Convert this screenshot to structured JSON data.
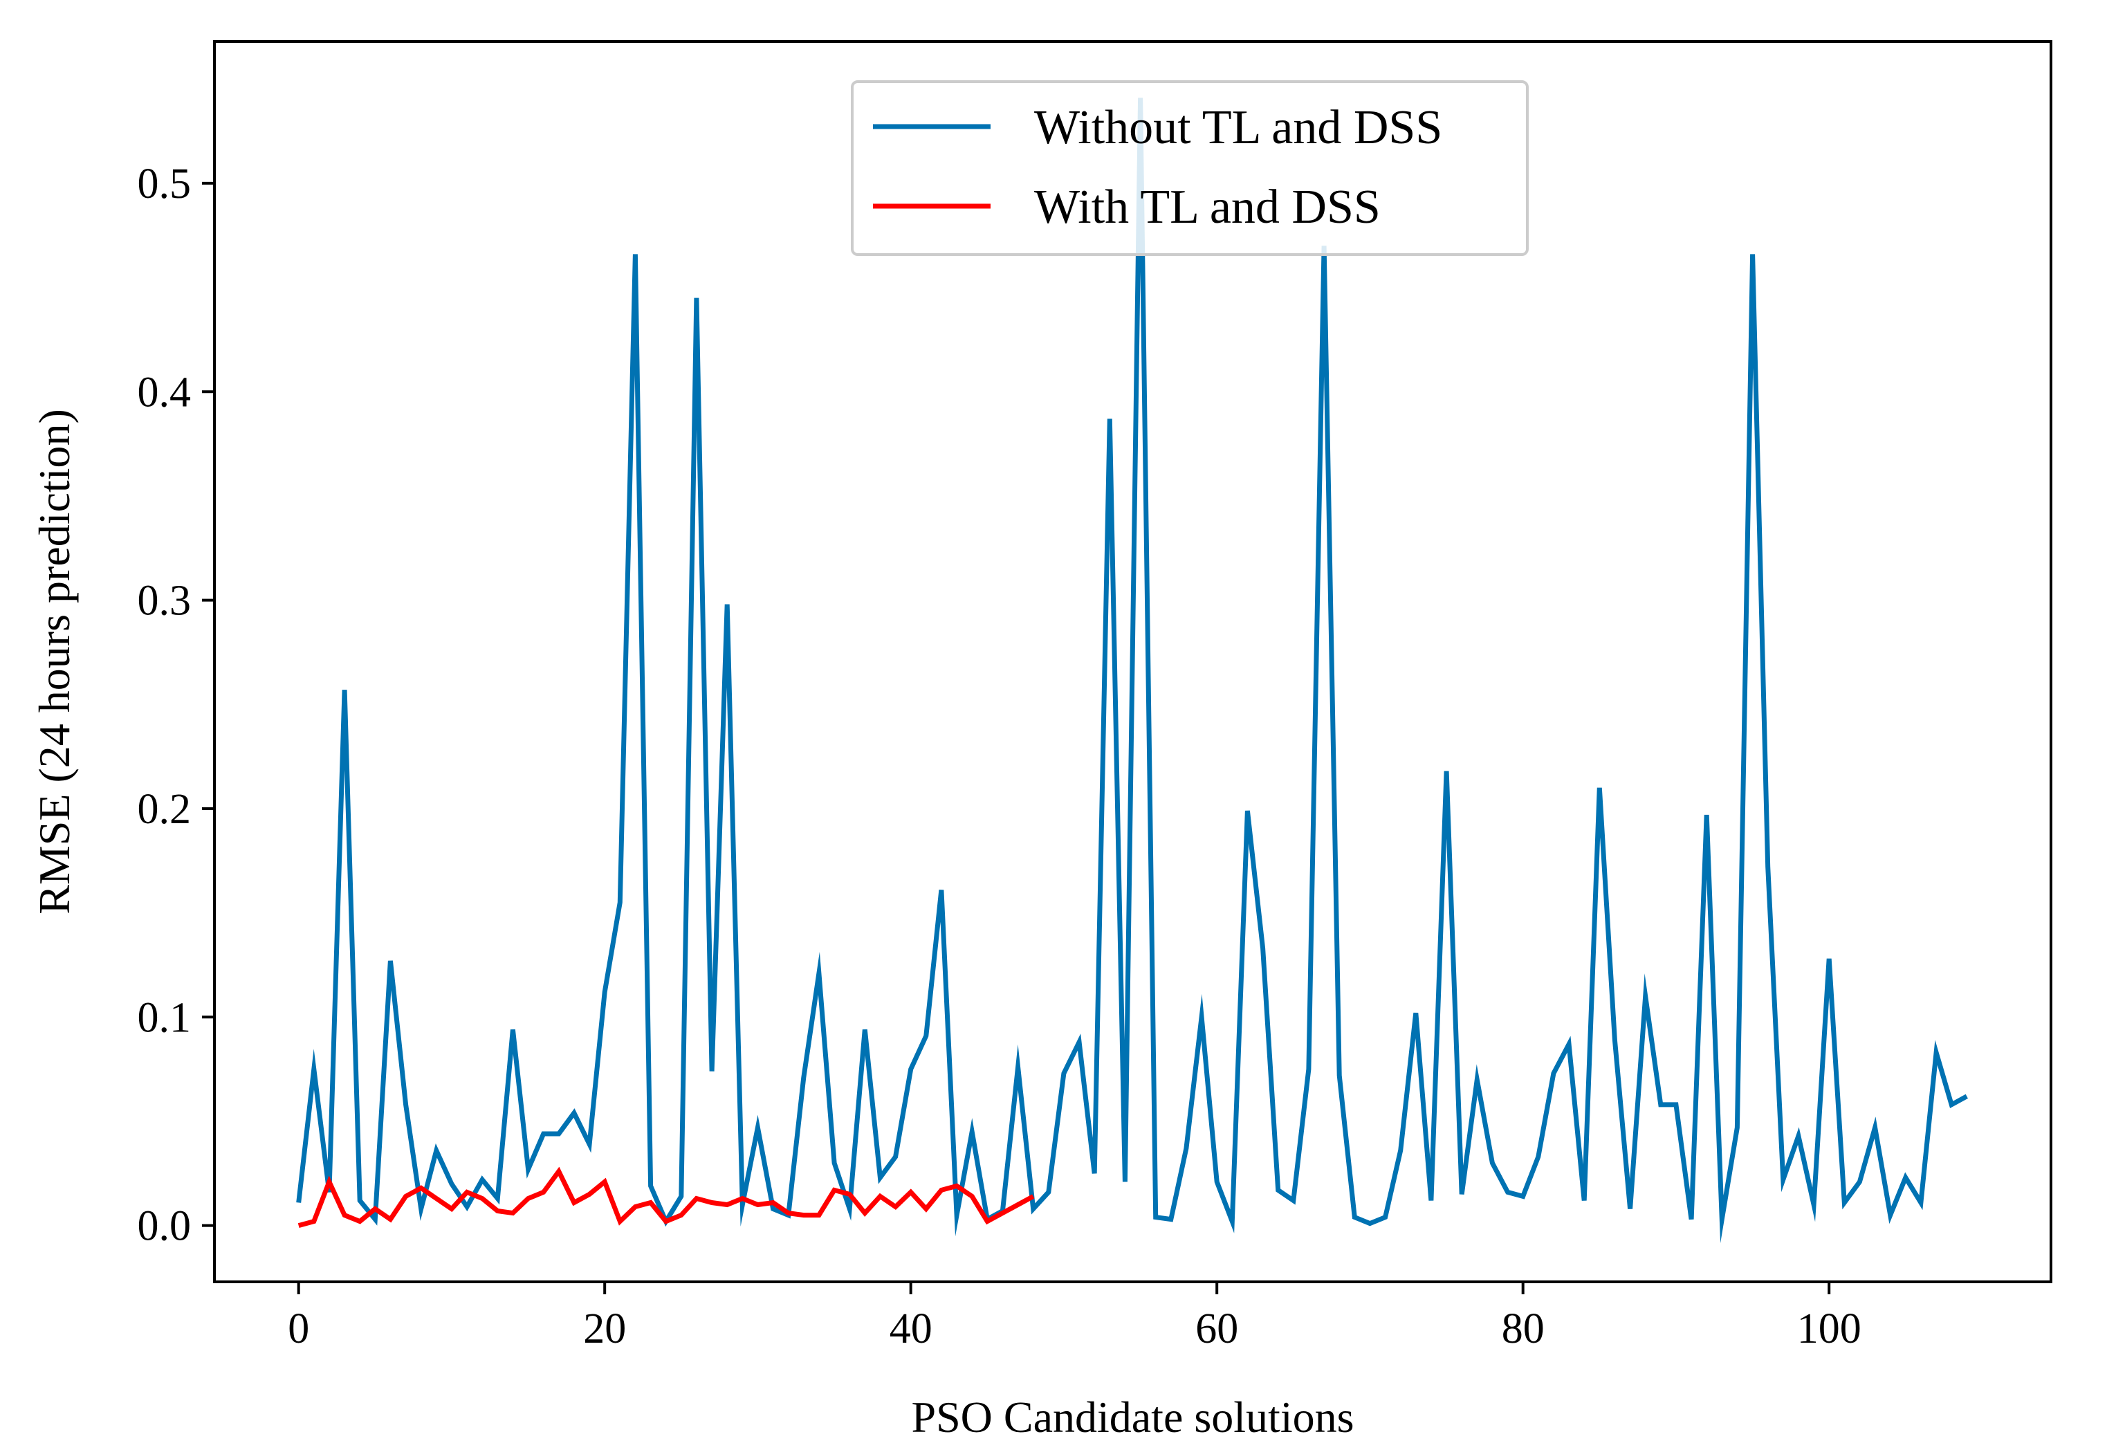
{
  "chart_data": {
    "type": "line",
    "title": "",
    "xlabel": "PSO Candidate solutions",
    "ylabel": "RMSE (24 hours prediction)",
    "xlim": [
      -5.5,
      114.5
    ],
    "ylim": [
      -0.027,
      0.568
    ],
    "xticks": [
      0,
      20,
      40,
      60,
      80,
      100
    ],
    "xtick_labels": [
      "0",
      "20",
      "40",
      "60",
      "80",
      "100"
    ],
    "yticks": [
      0.0,
      0.1,
      0.2,
      0.3,
      0.4,
      0.5
    ],
    "ytick_labels": [
      "0.0",
      "0.1",
      "0.2",
      "0.3",
      "0.4",
      "0.5"
    ],
    "grid": false,
    "legend_position": "top-center",
    "series": [
      {
        "name": "Without TL and DSS",
        "color": "#0072b2",
        "x": [
          0,
          1,
          2,
          3,
          4,
          5,
          6,
          7,
          8,
          9,
          10,
          11,
          12,
          13,
          14,
          15,
          16,
          17,
          18,
          19,
          20,
          21,
          22,
          23,
          24,
          25,
          26,
          27,
          28,
          29,
          30,
          31,
          32,
          33,
          34,
          35,
          36,
          37,
          38,
          39,
          40,
          41,
          42,
          43,
          44,
          45,
          46,
          47,
          48,
          49,
          50,
          51,
          52,
          53,
          54,
          55,
          56,
          57,
          58,
          59,
          60,
          61,
          62,
          63,
          64,
          65,
          66,
          67,
          68,
          69,
          70,
          71,
          72,
          73,
          74,
          75,
          76,
          77,
          78,
          79,
          80,
          81,
          82,
          83,
          84,
          85,
          86,
          87,
          88,
          89,
          90,
          91,
          92,
          93,
          94,
          95,
          96,
          97,
          98,
          99,
          100,
          101,
          102,
          103,
          104,
          105,
          106,
          107,
          108,
          109
        ],
        "values": [
          0.011,
          0.075,
          0.016,
          0.257,
          0.012,
          0.003,
          0.127,
          0.058,
          0.008,
          0.036,
          0.02,
          0.009,
          0.022,
          0.013,
          0.094,
          0.027,
          0.044,
          0.044,
          0.054,
          0.039,
          0.112,
          0.155,
          0.466,
          0.019,
          0.002,
          0.014,
          0.445,
          0.074,
          0.298,
          0.01,
          0.047,
          0.008,
          0.005,
          0.071,
          0.121,
          0.03,
          0.008,
          0.094,
          0.023,
          0.033,
          0.075,
          0.091,
          0.161,
          0.005,
          0.045,
          0.003,
          0.007,
          0.076,
          0.008,
          0.016,
          0.073,
          0.088,
          0.025,
          0.387,
          0.021,
          0.541,
          0.004,
          0.003,
          0.037,
          0.1,
          0.021,
          0.002,
          0.199,
          0.133,
          0.017,
          0.012,
          0.075,
          0.47,
          0.072,
          0.004,
          0.001,
          0.004,
          0.036,
          0.102,
          0.012,
          0.218,
          0.015,
          0.07,
          0.03,
          0.016,
          0.014,
          0.033,
          0.073,
          0.087,
          0.012,
          0.21,
          0.089,
          0.008,
          0.11,
          0.058,
          0.058,
          0.003,
          0.197,
          0.003,
          0.047,
          0.466,
          0.172,
          0.022,
          0.043,
          0.01,
          0.128,
          0.011,
          0.021,
          0.047,
          0.005,
          0.023,
          0.011,
          0.083,
          0.058,
          0.062
        ]
      },
      {
        "name": "With TL and DSS",
        "color": "#ff0000",
        "x": [
          0,
          1,
          2,
          3,
          4,
          5,
          6,
          7,
          8,
          9,
          10,
          11,
          12,
          13,
          14,
          15,
          16,
          17,
          18,
          19,
          20,
          21,
          22,
          23,
          24,
          25,
          26,
          27,
          28,
          29,
          30,
          31,
          32,
          33,
          34,
          35,
          36,
          37,
          38,
          39,
          40,
          41,
          42,
          43,
          44,
          45,
          46,
          47,
          48
        ],
        "values": [
          0.0,
          0.002,
          0.021,
          0.005,
          0.002,
          0.008,
          0.003,
          0.014,
          0.018,
          0.013,
          0.008,
          0.016,
          0.013,
          0.007,
          0.006,
          0.013,
          0.016,
          0.026,
          0.011,
          0.015,
          0.021,
          0.002,
          0.009,
          0.011,
          0.002,
          0.005,
          0.013,
          0.011,
          0.01,
          0.013,
          0.01,
          0.011,
          0.006,
          0.005,
          0.005,
          0.017,
          0.015,
          0.006,
          0.014,
          0.009,
          0.016,
          0.008,
          0.017,
          0.019,
          0.014,
          0.002,
          0.006,
          0.01,
          0.014
        ]
      }
    ]
  }
}
